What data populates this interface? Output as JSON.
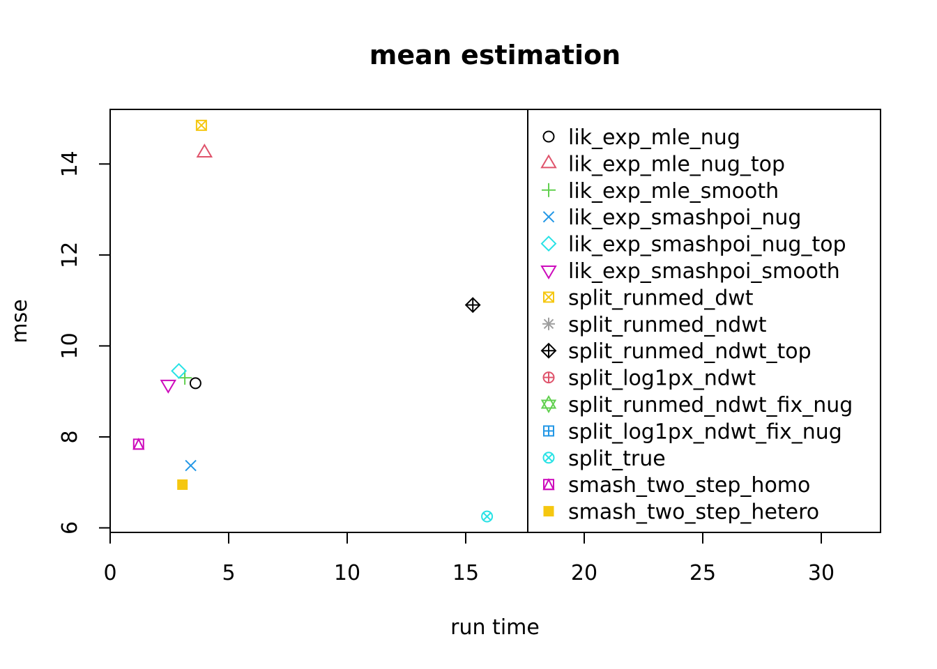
{
  "chart_data": {
    "type": "scatter",
    "title": "mean estimation",
    "xlabel": "run time",
    "ylabel": "mse",
    "xlim": [
      0,
      32.5
    ],
    "ylim": [
      5.9,
      15.2
    ],
    "xticks": [
      0,
      5,
      10,
      15,
      20,
      25,
      30
    ],
    "yticks": [
      6,
      8,
      10,
      12,
      14
    ],
    "grid": false,
    "legend_position": "right-inside",
    "series": [
      {
        "name": "lik_exp_mle_nug",
        "symbol": "circle",
        "color": "#000000",
        "x": 3.6,
        "y": 9.18
      },
      {
        "name": "lik_exp_mle_nug_top",
        "symbol": "triangle-up",
        "color": "#DF536B",
        "x": 3.98,
        "y": 14.25
      },
      {
        "name": "lik_exp_mle_smooth",
        "symbol": "plus",
        "color": "#61D04F",
        "x": 3.15,
        "y": 9.3
      },
      {
        "name": "lik_exp_smashpoi_nug",
        "symbol": "cross",
        "color": "#2297E6",
        "x": 3.4,
        "y": 7.37
      },
      {
        "name": "lik_exp_smashpoi_nug_top",
        "symbol": "diamond",
        "color": "#28E2E5",
        "x": 2.9,
        "y": 9.45
      },
      {
        "name": "lik_exp_smashpoi_smooth",
        "symbol": "triangle-down",
        "color": "#CD0BBC",
        "x": 2.45,
        "y": 9.15
      },
      {
        "name": "split_runmed_dwt",
        "symbol": "square-cross",
        "color": "#F5C710",
        "x": 3.85,
        "y": 14.85
      },
      {
        "name": "split_runmed_ndwt",
        "symbol": "asterisk",
        "color": "#9E9E9E",
        "x": null,
        "y": null
      },
      {
        "name": "split_runmed_ndwt_top",
        "symbol": "diamond-plus",
        "color": "#000000",
        "x": 15.3,
        "y": 10.9
      },
      {
        "name": "split_log1px_ndwt",
        "symbol": "circle-plus",
        "color": "#DF536B",
        "x": null,
        "y": null
      },
      {
        "name": "split_runmed_ndwt_fix_nug",
        "symbol": "star-of-david",
        "color": "#61D04F",
        "x": null,
        "y": null
      },
      {
        "name": "split_log1px_ndwt_fix_nug",
        "symbol": "square-plus",
        "color": "#2297E6",
        "x": null,
        "y": null
      },
      {
        "name": "split_true",
        "symbol": "circle-cross",
        "color": "#28E2E5",
        "x": 15.9,
        "y": 6.25
      },
      {
        "name": "smash_two_step_homo",
        "symbol": "square-triangle",
        "color": "#CD0BBC",
        "x": 1.2,
        "y": 7.84
      },
      {
        "name": "smash_two_step_hetero",
        "symbol": "filled-square",
        "color": "#F5C710",
        "x": 3.05,
        "y": 6.95
      }
    ]
  }
}
